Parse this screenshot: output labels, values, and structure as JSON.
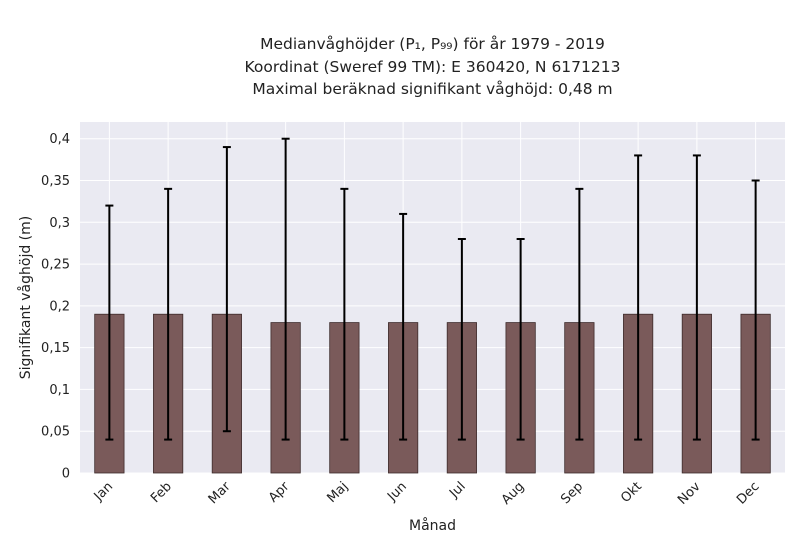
{
  "chart_data": {
    "type": "bar",
    "title_lines": [
      "Medianvåghöjder (P₁, P₉₉) för år 1979 - 2019",
      "Koordinat (Sweref 99 TM): E 360420, N 6171213",
      "Maximal beräknad signifikant våghöjd: 0,48 m"
    ],
    "xlabel": "Månad",
    "ylabel": "Signifikant våghöjd (m)",
    "categories": [
      "Jan",
      "Feb",
      "Mar",
      "Apr",
      "Maj",
      "Jun",
      "Jul",
      "Aug",
      "Sep",
      "Okt",
      "Nov",
      "Dec"
    ],
    "values": [
      0.19,
      0.19,
      0.19,
      0.18,
      0.18,
      0.18,
      0.18,
      0.18,
      0.18,
      0.19,
      0.19,
      0.19
    ],
    "error_low": [
      0.04,
      0.04,
      0.05,
      0.04,
      0.04,
      0.04,
      0.04,
      0.04,
      0.04,
      0.04,
      0.04,
      0.04
    ],
    "error_high": [
      0.32,
      0.34,
      0.39,
      0.4,
      0.34,
      0.31,
      0.28,
      0.28,
      0.34,
      0.38,
      0.38,
      0.35
    ],
    "ylim": [
      0,
      0.42
    ],
    "yticks": [
      0,
      0.05,
      0.1,
      0.15,
      0.2,
      0.25,
      0.3,
      0.35,
      0.4
    ],
    "ytick_labels": [
      "0",
      "0,05",
      "0,1",
      "0,15",
      "0,2",
      "0,25",
      "0,3",
      "0,35",
      "0,4"
    ],
    "grid": true,
    "colors": {
      "bar": "#7a5a5a",
      "bar_edge": "#3d2b2b",
      "error": "#000000",
      "plot_bg": "#eaeaf2",
      "grid": "#ffffff"
    }
  }
}
